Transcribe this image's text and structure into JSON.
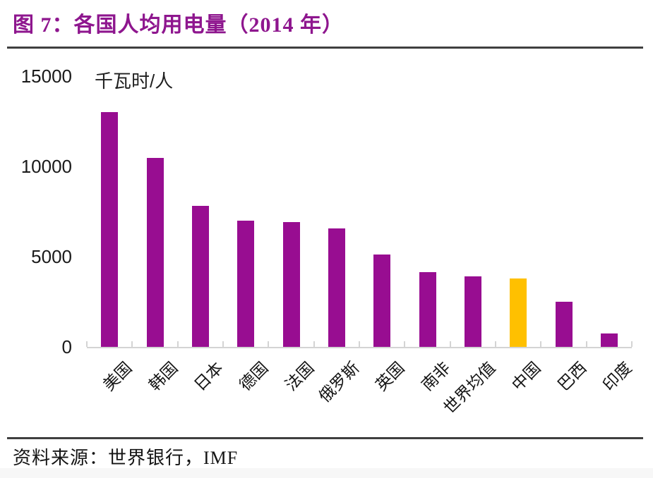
{
  "header": {
    "title": "图 7：各国人均用电量（2014 年）",
    "title_color": "#8E168E"
  },
  "footer": {
    "source": "资料来源：世界银行，IMF"
  },
  "chart_data": {
    "type": "bar",
    "title": "各国人均用电量（2014 年）",
    "unit_label": "千瓦时/人",
    "categories": [
      "美国",
      "韩国",
      "日本",
      "德国",
      "法国",
      "俄罗斯",
      "英国",
      "南非",
      "世界均值",
      "中国",
      "巴西",
      "印度"
    ],
    "values": [
      13000,
      10450,
      7800,
      7000,
      6900,
      6550,
      5100,
      4150,
      3900,
      3800,
      2500,
      750
    ],
    "highlight_category": "中国",
    "xlabel": "",
    "ylabel": "千瓦时/人",
    "ylim": [
      0,
      15000
    ],
    "yticks": [
      0,
      5000,
      10000,
      15000
    ],
    "grid": false,
    "legend": "none",
    "x_label_rotation_deg": -45,
    "colors": {
      "bar": "#980D91",
      "highlight": "#FFC000",
      "axis": "#d4d4d4"
    }
  }
}
